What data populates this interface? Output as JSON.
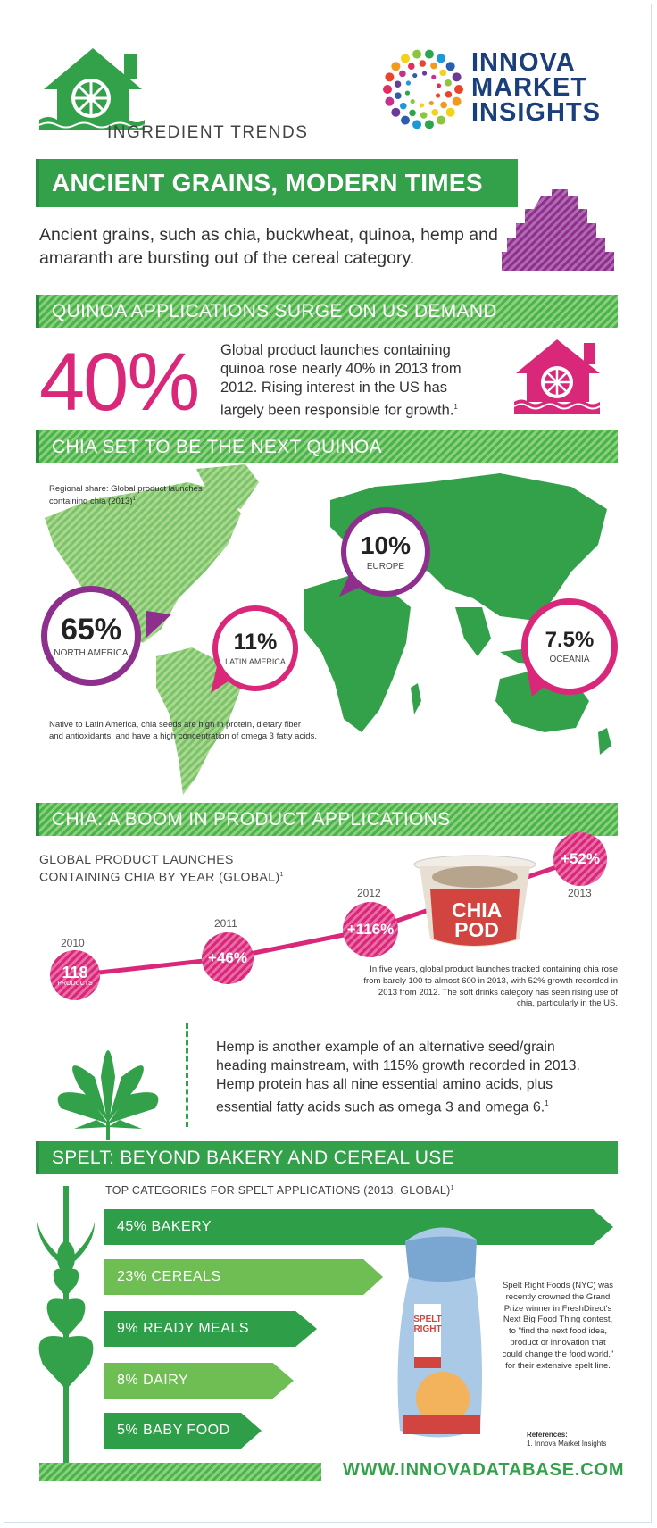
{
  "header": {
    "section_label": "INGREDIENT TRENDS",
    "brand_line1": "INNOVA",
    "brand_line2": "MARKET",
    "brand_line3": "INSIGHTS"
  },
  "main_title": "ANCIENT GRAINS, MODERN TIMES",
  "intro": "Ancient grains, such as chia, buckwheat, quinoa, hemp and amaranth are bursting out of the cereal category.",
  "quinoa": {
    "heading": "QUINOA APPLICATIONS SURGE ON US DEMAND",
    "big_stat": "40%",
    "text": "Global product launches containing quinoa rose nearly 40% in 2013 from 2012. Rising interest in the US has largely been responsible for growth.",
    "footnote": "1"
  },
  "chia_map": {
    "heading": "CHIA SET TO BE THE NEXT QUINOA",
    "caption": "Regional share: Global product launches containing chia (2013)",
    "caption_footnote": "1",
    "regions": [
      {
        "value": "65%",
        "label": "NORTH AMERICA"
      },
      {
        "value": "11%",
        "label": "LATIN AMERICA"
      },
      {
        "value": "10%",
        "label": "EUROPE"
      },
      {
        "value": "7.5%",
        "label": "OCEANIA"
      }
    ],
    "note": "Native to Latin America, chia seeds are high in protein, dietary fiber and antioxidants, and have a high concentration of omega 3 fatty acids."
  },
  "chia_boom": {
    "heading": "CHIA: A BOOM IN PRODUCT APPLICATIONS",
    "chart_title_line1": "GLOBAL PRODUCT LAUNCHES",
    "chart_title_line2": "CONTAINING CHIA BY YEAR (GLOBAL)",
    "chart_footnote": "1",
    "points": [
      {
        "year": "2010",
        "value": "118",
        "sub": "PRODUCTS"
      },
      {
        "year": "2011",
        "value": "+46%"
      },
      {
        "year": "2012",
        "value": "+116%"
      },
      {
        "year": "2013",
        "value": "+52%"
      }
    ],
    "product_line1": "CHIA",
    "product_line2": "POD",
    "text": "In five years, global product launches tracked containing chia rose from barely 100 to almost 600 in 2013, with 52% growth recorded in 2013 from 2012. The soft drinks category has seen rising use of chia, particularly in the US."
  },
  "chart_data": {
    "type": "line",
    "title": "GLOBAL PRODUCT LAUNCHES CONTAINING CHIA BY YEAR (GLOBAL)",
    "x": [
      "2010",
      "2011",
      "2012",
      "2013"
    ],
    "series": [
      {
        "values_labels": [
          "118 PRODUCTS",
          "+46%",
          "+116%",
          "+52%"
        ]
      }
    ]
  },
  "hemp": {
    "text": "Hemp is another example of an alternative seed/grain heading mainstream, with 115% growth recorded in 2013. Hemp protein has all nine essential amino acids, plus essential fatty acids such as omega 3 and omega 6.",
    "footnote": "1"
  },
  "spelt": {
    "heading": "SPELT: BEYOND BAKERY AND CEREAL USE",
    "subheading": "TOP CATEGORIES FOR SPELT APPLICATIONS (2013, GLOBAL)",
    "subheading_footnote": "1",
    "categories": [
      {
        "label": "45% BAKERY",
        "share": 45
      },
      {
        "label": "23% CEREALS",
        "share": 23
      },
      {
        "label": "9% READY MEALS",
        "share": 9
      },
      {
        "label": "8% DAIRY",
        "share": 8
      },
      {
        "label": "5% BABY FOOD",
        "share": 5
      }
    ],
    "package_line1": "SPELT",
    "package_line2": "RIGHT",
    "side_text": "Spelt Right Foods (NYC) was recently crowned the Grand Prize winner in FreshDirect's Next Big Food Thing contest, to \"find the next food idea, product or innovation that could change the food world,\" for their extensive spelt line."
  },
  "references": {
    "title": "References:",
    "item": "1. Innova Market Insights"
  },
  "footer_url": "WWW.INNOVADATABASE.COM",
  "colors": {
    "green": "#33a04a",
    "pink": "#d9287a",
    "purple": "#8e2f8e",
    "navy": "#1b3f7a"
  }
}
